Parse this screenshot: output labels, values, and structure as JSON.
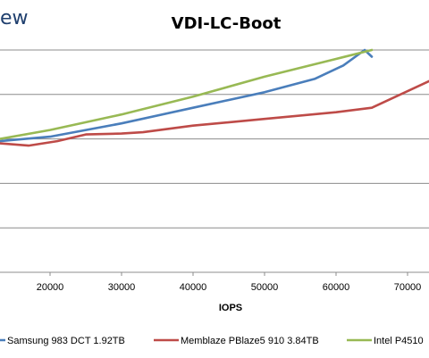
{
  "logo": {
    "text": "ew"
  },
  "chart_data": {
    "type": "line",
    "title": "VDI-LC-Boot",
    "xlabel": "IOPS",
    "ylabel": "",
    "xlim": [
      13000,
      73000
    ],
    "ylim": [
      0,
      5
    ],
    "grid": true,
    "legend_position": "bottom",
    "x_ticks": [
      20000,
      30000,
      40000,
      50000,
      60000,
      70000
    ],
    "x_tick_labels": [
      "20000",
      "30000",
      "40000",
      "50000",
      "60000",
      "70000"
    ],
    "series": [
      {
        "name": "Samsung 983 DCT 1.92TB",
        "color": "#4a7ebb",
        "points": [
          [
            13000,
            2.95
          ],
          [
            20000,
            3.05
          ],
          [
            30000,
            3.35
          ],
          [
            40000,
            3.7
          ],
          [
            50000,
            4.05
          ],
          [
            57000,
            4.35
          ],
          [
            61000,
            4.65
          ],
          [
            64000,
            5.0
          ],
          [
            65000,
            4.85
          ]
        ]
      },
      {
        "name": "Memblaze PBlaze5 910 3.84TB",
        "color": "#be4b48",
        "points": [
          [
            13000,
            2.9
          ],
          [
            17000,
            2.85
          ],
          [
            21000,
            2.95
          ],
          [
            25000,
            3.1
          ],
          [
            30000,
            3.12
          ],
          [
            33000,
            3.15
          ],
          [
            40000,
            3.3
          ],
          [
            50000,
            3.45
          ],
          [
            60000,
            3.6
          ],
          [
            65000,
            3.7
          ],
          [
            73000,
            4.3
          ]
        ]
      },
      {
        "name": "Intel P4510",
        "color": "#98b954",
        "points": [
          [
            13000,
            3.0
          ],
          [
            20000,
            3.2
          ],
          [
            30000,
            3.55
          ],
          [
            40000,
            3.95
          ],
          [
            50000,
            4.4
          ],
          [
            60000,
            4.8
          ],
          [
            65000,
            5.0
          ]
        ]
      }
    ]
  }
}
